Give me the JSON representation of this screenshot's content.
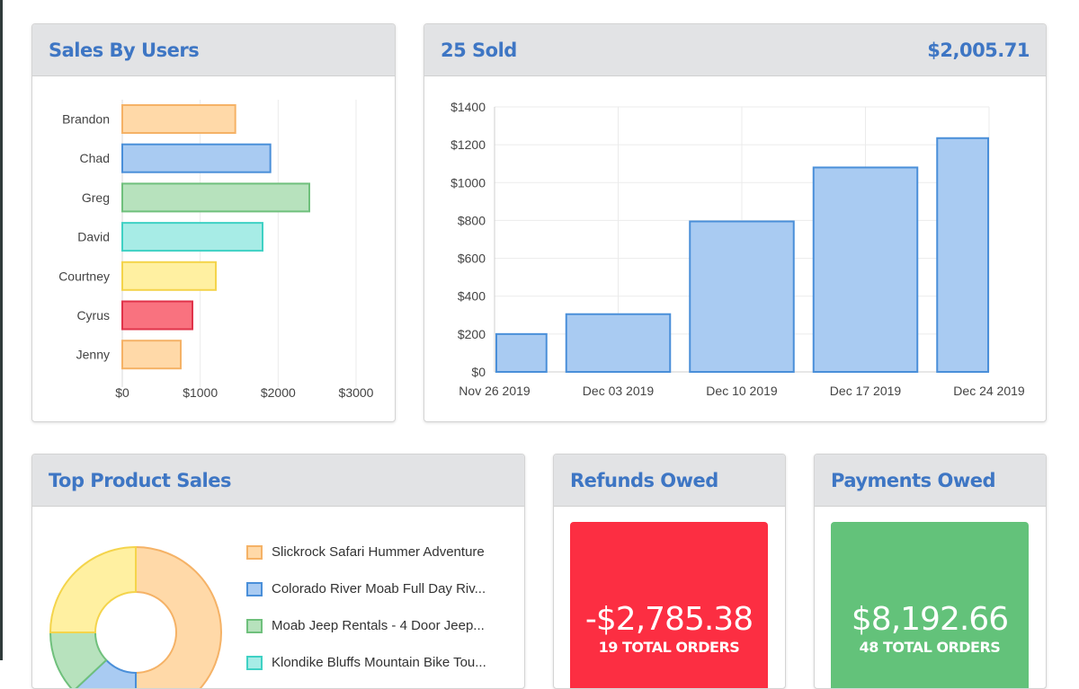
{
  "sales_by_users": {
    "title": "Sales By Users",
    "chart_data": {
      "type": "bar",
      "orientation": "horizontal",
      "categories": [
        "Brandon",
        "Chad",
        "Greg",
        "David",
        "Courtney",
        "Cyrus",
        "Jenny"
      ],
      "values": [
        1450,
        1900,
        2400,
        1800,
        1200,
        900,
        750
      ],
      "colors": [
        "#ffd9a8",
        "#a9cbf2",
        "#b7e2bd",
        "#a7ece6",
        "#fff0a1",
        "#f9727f",
        "#ffd9a8"
      ],
      "borders": [
        "#f5b266",
        "#4a8fd9",
        "#6fc07c",
        "#3fd1c4",
        "#f4d44b",
        "#e0334a",
        "#f5b266"
      ],
      "xticks": [
        "$0",
        "$1000",
        "$2000",
        "$3000"
      ],
      "xlim": [
        0,
        3000
      ]
    }
  },
  "sold": {
    "title": "25 Sold",
    "total": "$2,005.71",
    "chart_data": {
      "type": "bar",
      "x": [
        "Nov 26 2019",
        "Dec 03 2019",
        "Dec 10 2019",
        "Dec 17 2019",
        "Dec 24 2019"
      ],
      "values": [
        200,
        305,
        795,
        1080,
        1235
      ],
      "yticks": [
        "$0",
        "$200",
        "$400",
        "$600",
        "$800",
        "$1000",
        "$1200",
        "$1400"
      ],
      "ylim": [
        0,
        1400
      ],
      "color": "#a9cbf2",
      "border": "#4a8fd9"
    }
  },
  "top_products": {
    "title": "Top Product Sales",
    "chart_data": {
      "type": "pie",
      "labels": [
        "Slickrock Safari Hummer Adventure",
        "Colorado River Moab Full Day Riv...",
        "Moab Jeep Rentals - 4 Door Jeep...",
        "Klondike Bluffs Mountain Bike Tou..."
      ],
      "values": [
        50,
        13,
        12,
        25
      ],
      "colors": [
        "#ffd9a8",
        "#a9cbf2",
        "#b7e2bd",
        "#a7ece6",
        "#fff0a1"
      ],
      "borders": [
        "#f5b266",
        "#4a8fd9",
        "#6fc07c",
        "#3fd1c4",
        "#f4d44b"
      ]
    }
  },
  "refunds": {
    "title": "Refunds Owed",
    "amount": "-$2,785.38",
    "orders": "19 TOTAL ORDERS",
    "color": "#fc2e42"
  },
  "payments": {
    "title": "Payments Owed",
    "amount": "$8,192.66",
    "orders": "48 TOTAL ORDERS",
    "color": "#63c27a"
  }
}
